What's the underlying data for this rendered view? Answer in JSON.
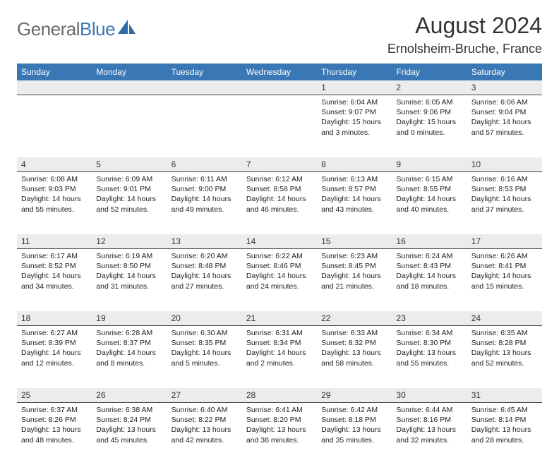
{
  "logo": {
    "word1": "General",
    "word2": "Blue"
  },
  "title": "August 2024",
  "location": "Ernolsheim-Bruche, France",
  "colors": {
    "header_bg": "#3a78b5",
    "header_text": "#ffffff",
    "daynum_bg": "#ececec",
    "daynum_border": "#444444",
    "body_text": "#222222",
    "logo_grey": "#6b6b6b",
    "logo_blue": "#3a78b5",
    "page_bg": "#ffffff"
  },
  "fonts": {
    "title_pt": 32,
    "location_pt": 18,
    "dayhead_pt": 12,
    "daynum_pt": 12,
    "body_pt": 10.5
  },
  "day_headers": [
    "Sunday",
    "Monday",
    "Tuesday",
    "Wednesday",
    "Thursday",
    "Friday",
    "Saturday"
  ],
  "weeks": [
    [
      null,
      null,
      null,
      null,
      {
        "n": "1",
        "sr": "6:04 AM",
        "ss": "9:07 PM",
        "dl": "15 hours and 3 minutes."
      },
      {
        "n": "2",
        "sr": "6:05 AM",
        "ss": "9:06 PM",
        "dl": "15 hours and 0 minutes."
      },
      {
        "n": "3",
        "sr": "6:06 AM",
        "ss": "9:04 PM",
        "dl": "14 hours and 57 minutes."
      }
    ],
    [
      {
        "n": "4",
        "sr": "6:08 AM",
        "ss": "9:03 PM",
        "dl": "14 hours and 55 minutes."
      },
      {
        "n": "5",
        "sr": "6:09 AM",
        "ss": "9:01 PM",
        "dl": "14 hours and 52 minutes."
      },
      {
        "n": "6",
        "sr": "6:11 AM",
        "ss": "9:00 PM",
        "dl": "14 hours and 49 minutes."
      },
      {
        "n": "7",
        "sr": "6:12 AM",
        "ss": "8:58 PM",
        "dl": "14 hours and 46 minutes."
      },
      {
        "n": "8",
        "sr": "6:13 AM",
        "ss": "8:57 PM",
        "dl": "14 hours and 43 minutes."
      },
      {
        "n": "9",
        "sr": "6:15 AM",
        "ss": "8:55 PM",
        "dl": "14 hours and 40 minutes."
      },
      {
        "n": "10",
        "sr": "6:16 AM",
        "ss": "8:53 PM",
        "dl": "14 hours and 37 minutes."
      }
    ],
    [
      {
        "n": "11",
        "sr": "6:17 AM",
        "ss": "8:52 PM",
        "dl": "14 hours and 34 minutes."
      },
      {
        "n": "12",
        "sr": "6:19 AM",
        "ss": "8:50 PM",
        "dl": "14 hours and 31 minutes."
      },
      {
        "n": "13",
        "sr": "6:20 AM",
        "ss": "8:48 PM",
        "dl": "14 hours and 27 minutes."
      },
      {
        "n": "14",
        "sr": "6:22 AM",
        "ss": "8:46 PM",
        "dl": "14 hours and 24 minutes."
      },
      {
        "n": "15",
        "sr": "6:23 AM",
        "ss": "8:45 PM",
        "dl": "14 hours and 21 minutes."
      },
      {
        "n": "16",
        "sr": "6:24 AM",
        "ss": "8:43 PM",
        "dl": "14 hours and 18 minutes."
      },
      {
        "n": "17",
        "sr": "6:26 AM",
        "ss": "8:41 PM",
        "dl": "14 hours and 15 minutes."
      }
    ],
    [
      {
        "n": "18",
        "sr": "6:27 AM",
        "ss": "8:39 PM",
        "dl": "14 hours and 12 minutes."
      },
      {
        "n": "19",
        "sr": "6:28 AM",
        "ss": "8:37 PM",
        "dl": "14 hours and 8 minutes."
      },
      {
        "n": "20",
        "sr": "6:30 AM",
        "ss": "8:35 PM",
        "dl": "14 hours and 5 minutes."
      },
      {
        "n": "21",
        "sr": "6:31 AM",
        "ss": "8:34 PM",
        "dl": "14 hours and 2 minutes."
      },
      {
        "n": "22",
        "sr": "6:33 AM",
        "ss": "8:32 PM",
        "dl": "13 hours and 58 minutes."
      },
      {
        "n": "23",
        "sr": "6:34 AM",
        "ss": "8:30 PM",
        "dl": "13 hours and 55 minutes."
      },
      {
        "n": "24",
        "sr": "6:35 AM",
        "ss": "8:28 PM",
        "dl": "13 hours and 52 minutes."
      }
    ],
    [
      {
        "n": "25",
        "sr": "6:37 AM",
        "ss": "8:26 PM",
        "dl": "13 hours and 48 minutes."
      },
      {
        "n": "26",
        "sr": "6:38 AM",
        "ss": "8:24 PM",
        "dl": "13 hours and 45 minutes."
      },
      {
        "n": "27",
        "sr": "6:40 AM",
        "ss": "8:22 PM",
        "dl": "13 hours and 42 minutes."
      },
      {
        "n": "28",
        "sr": "6:41 AM",
        "ss": "8:20 PM",
        "dl": "13 hours and 38 minutes."
      },
      {
        "n": "29",
        "sr": "6:42 AM",
        "ss": "8:18 PM",
        "dl": "13 hours and 35 minutes."
      },
      {
        "n": "30",
        "sr": "6:44 AM",
        "ss": "8:16 PM",
        "dl": "13 hours and 32 minutes."
      },
      {
        "n": "31",
        "sr": "6:45 AM",
        "ss": "8:14 PM",
        "dl": "13 hours and 28 minutes."
      }
    ]
  ],
  "labels": {
    "sunrise": "Sunrise:",
    "sunset": "Sunset:",
    "daylight": "Daylight:"
  }
}
